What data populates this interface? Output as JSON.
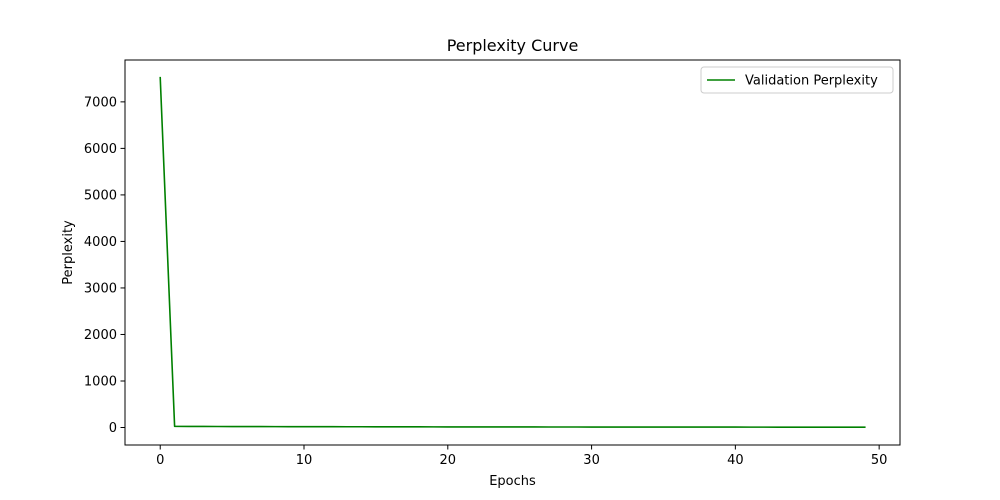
{
  "chart_data": {
    "type": "line",
    "title": "Perplexity Curve",
    "xlabel": "Epochs",
    "ylabel": "Perplexity",
    "xlim": [
      -2.45,
      51.45
    ],
    "ylim": [
      -376,
      7900
    ],
    "xticks": [
      0,
      10,
      20,
      30,
      40,
      50
    ],
    "yticks": [
      0,
      1000,
      2000,
      3000,
      4000,
      5000,
      6000,
      7000
    ],
    "grid": false,
    "legend_position": "top-right",
    "series": [
      {
        "name": "Validation Perplexity",
        "color": "#008000",
        "x": [
          0,
          1,
          2,
          3,
          4,
          5,
          6,
          7,
          8,
          9,
          10,
          11,
          12,
          13,
          14,
          15,
          16,
          17,
          18,
          19,
          20,
          21,
          22,
          23,
          24,
          25,
          26,
          27,
          28,
          29,
          30,
          31,
          32,
          33,
          34,
          35,
          36,
          37,
          38,
          39,
          40,
          41,
          42,
          43,
          44,
          45,
          46,
          47,
          48,
          49
        ],
        "y": [
          7520,
          25,
          24,
          23,
          22,
          21,
          20,
          19.5,
          19,
          18.5,
          18,
          17.5,
          17,
          16.5,
          16,
          15.5,
          15,
          14.6,
          14.2,
          13.8,
          13.4,
          13,
          12.7,
          12.4,
          12.1,
          11.8,
          11.5,
          11.2,
          11,
          10.8,
          10.6,
          10.4,
          10.2,
          10,
          9.8,
          9.6,
          9.4,
          9.2,
          9,
          8.8,
          8.6,
          8.4,
          8.2,
          8,
          7.8,
          7.6,
          7.4,
          7.2,
          7,
          6.8
        ]
      }
    ]
  }
}
